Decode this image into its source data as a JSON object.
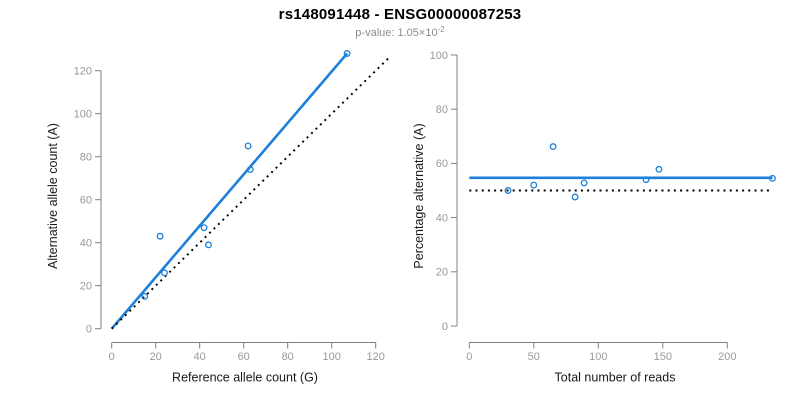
{
  "header": {
    "title": "rs148091448 - ENSG00000087253",
    "p_value_prefix": "p-value: 1.05×10",
    "p_value_exponent": "-2"
  },
  "colors": {
    "accent_blue": "#1E80D8",
    "dotted_black": "#000000",
    "axis_gray": "#808080",
    "tick_label_gray": "#999999",
    "axis_title_color": "#1a1a1a",
    "subtitle_gray": "#8c8c8c",
    "background": "#ffffff"
  },
  "chart_data": [
    {
      "type": "scatter",
      "panel": "left",
      "xlabel": "Reference allele count (G)",
      "ylabel": "Alternative allele count (A)",
      "xticks": [
        0,
        20,
        40,
        60,
        80,
        100,
        120
      ],
      "yticks": [
        0,
        20,
        40,
        60,
        80,
        100,
        120
      ],
      "xlim": [
        0,
        127
      ],
      "ylim": [
        0,
        128
      ],
      "grid": false,
      "points": [
        [
          15,
          15
        ],
        [
          22,
          43
        ],
        [
          24,
          26
        ],
        [
          42,
          47
        ],
        [
          44,
          39
        ],
        [
          62,
          85
        ],
        [
          63,
          74
        ],
        [
          107,
          128
        ]
      ],
      "lines": [
        {
          "name": "fit-line",
          "style": "solid",
          "color": "#1E80D8",
          "from": [
            0,
            0
          ],
          "to": [
            107,
            128
          ]
        },
        {
          "name": "identity-line",
          "style": "dotted",
          "color": "#000000",
          "from": [
            0,
            0
          ],
          "to": [
            127,
            127
          ]
        }
      ]
    },
    {
      "type": "scatter",
      "panel": "right",
      "xlabel": "Total number of reads",
      "ylabel": "Percentage alternative (A)",
      "xticks": [
        0,
        50,
        100,
        150,
        200
      ],
      "yticks": [
        0,
        20,
        40,
        60,
        80,
        100
      ],
      "xlim": [
        0,
        235
      ],
      "ylim": [
        0,
        100
      ],
      "grid": false,
      "points": [
        [
          30,
          50
        ],
        [
          50,
          52
        ],
        [
          65,
          66.2
        ],
        [
          82,
          47.6
        ],
        [
          89,
          52.8
        ],
        [
          137,
          54
        ],
        [
          147,
          57.8
        ],
        [
          235,
          54.5
        ]
      ],
      "lines": [
        {
          "name": "mean-line",
          "style": "solid",
          "color": "#1E80D8",
          "from": [
            0,
            54.7
          ],
          "to": [
            235,
            54.7
          ]
        },
        {
          "name": "expected-line",
          "style": "dotted",
          "color": "#000000",
          "from": [
            0,
            50
          ],
          "to": [
            235,
            50
          ]
        }
      ]
    }
  ]
}
